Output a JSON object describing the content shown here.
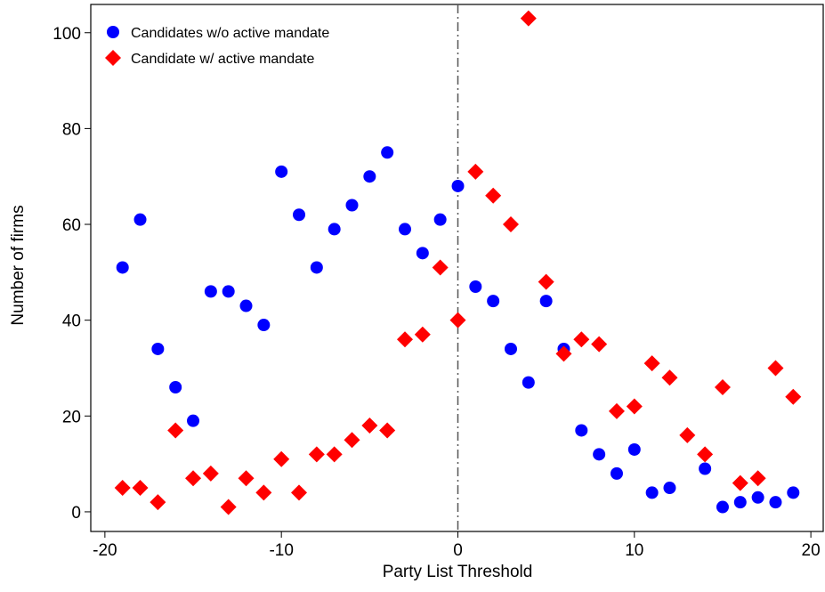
{
  "chart_data": {
    "type": "scatter",
    "x_label": "Party List Threshold",
    "y_label": "Number of firms",
    "x": [
      -19,
      -18,
      -17,
      -16,
      -15,
      -14,
      -13,
      -12,
      -11,
      -10,
      -9,
      -8,
      -7,
      -6,
      -5,
      -4,
      -3,
      -2,
      -1,
      0,
      1,
      2,
      3,
      4,
      5,
      6,
      7,
      8,
      9,
      10,
      11,
      12,
      13,
      14,
      15,
      16,
      17,
      18,
      19
    ],
    "series": [
      {
        "name": "Candidates w/o active mandate",
        "color": "#0000ff",
        "marker": "circle",
        "values": [
          51,
          61,
          34,
          26,
          19,
          46,
          46,
          43,
          39,
          71,
          62,
          51,
          59,
          64,
          70,
          75,
          59,
          54,
          61,
          68,
          47,
          44,
          34,
          27,
          44,
          34,
          17,
          12,
          8,
          13,
          4,
          5,
          null,
          9,
          1,
          2,
          3,
          2,
          4
        ]
      },
      {
        "name": "Candidate w/ active mandate",
        "color": "#ff0000",
        "marker": "diamond",
        "values": [
          5,
          5,
          2,
          17,
          7,
          8,
          1,
          7,
          4,
          11,
          4,
          12,
          12,
          15,
          18,
          17,
          36,
          37,
          51,
          40,
          71,
          66,
          60,
          103,
          48,
          33,
          36,
          35,
          21,
          22,
          31,
          28,
          16,
          12,
          26,
          6,
          7,
          30,
          24
        ]
      }
    ],
    "xlim": [
      -20.8,
      20.7
    ],
    "ylim": [
      -4.1,
      105.9
    ],
    "xticks": [
      -20,
      -10,
      0,
      10,
      20
    ],
    "yticks": [
      0,
      20,
      40,
      60,
      80,
      100
    ],
    "vline": 0,
    "legend": "upper-left"
  }
}
